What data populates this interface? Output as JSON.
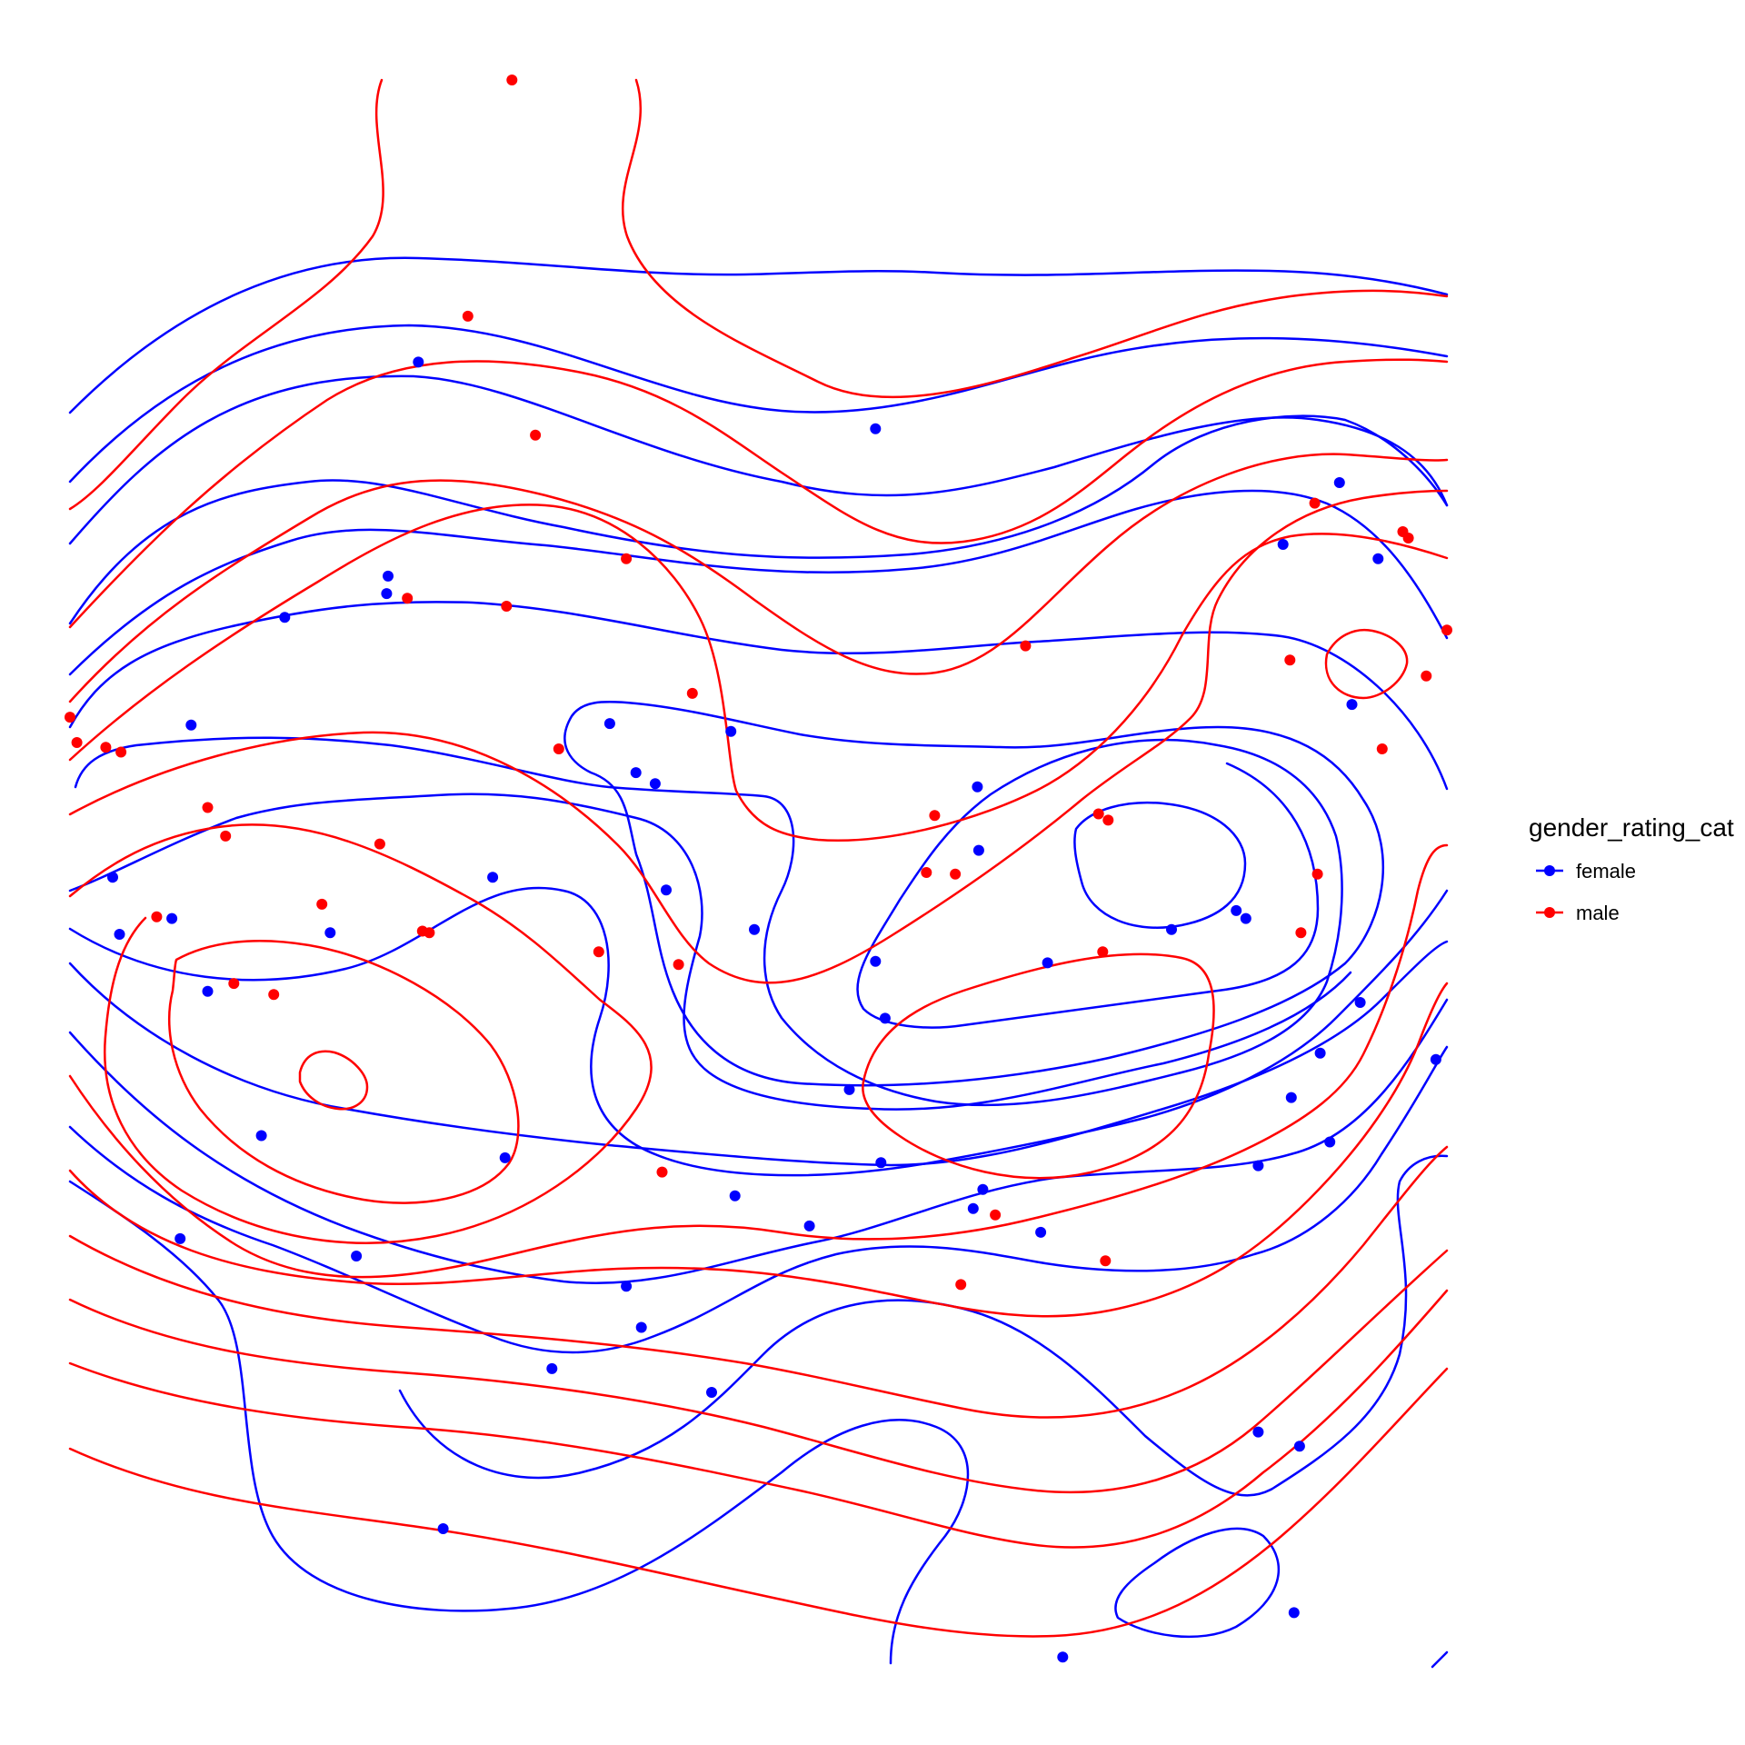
{
  "chart_data": {
    "type": "scatter",
    "title": "",
    "xlabel": "",
    "ylabel": "",
    "grid": false,
    "axes_visible": false,
    "xlim": [
      0,
      100
    ],
    "ylim": [
      0,
      100
    ],
    "legend": {
      "title": "gender_rating_cat",
      "placement": "right"
    },
    "series": [
      {
        "name": "female",
        "color": "#0000ff",
        "points": [
          [
            25.3,
            82.2
          ],
          [
            58.5,
            78.0
          ],
          [
            92.2,
            74.6
          ],
          [
            88.1,
            70.7
          ],
          [
            95.0,
            69.8
          ],
          [
            23.1,
            68.7
          ],
          [
            23.0,
            67.6
          ],
          [
            15.6,
            66.1
          ],
          [
            93.1,
            60.6
          ],
          [
            39.2,
            59.4
          ],
          [
            48.0,
            58.9
          ],
          [
            41.1,
            56.3
          ],
          [
            42.5,
            55.6
          ],
          [
            65.9,
            55.4
          ],
          [
            66.0,
            51.4
          ],
          [
            8.8,
            59.3
          ],
          [
            30.7,
            49.7
          ],
          [
            3.1,
            49.7
          ],
          [
            43.3,
            48.9
          ],
          [
            84.7,
            47.6
          ],
          [
            85.4,
            47.1
          ],
          [
            18.9,
            46.2
          ],
          [
            3.6,
            46.1
          ],
          [
            7.4,
            47.1
          ],
          [
            49.7,
            46.4
          ],
          [
            80.0,
            46.4
          ],
          [
            58.5,
            44.4
          ],
          [
            71.0,
            44.3
          ],
          [
            10.0,
            42.5
          ],
          [
            93.7,
            41.8
          ],
          [
            90.8,
            38.6
          ],
          [
            59.2,
            40.8
          ],
          [
            99.2,
            38.2
          ],
          [
            56.6,
            36.3
          ],
          [
            88.7,
            35.8
          ],
          [
            13.9,
            33.4
          ],
          [
            91.5,
            33.0
          ],
          [
            31.6,
            32.0
          ],
          [
            58.9,
            31.7
          ],
          [
            86.3,
            31.5
          ],
          [
            66.3,
            30.0
          ],
          [
            48.3,
            29.6
          ],
          [
            65.6,
            28.8
          ],
          [
            53.7,
            27.7
          ],
          [
            8.0,
            26.9
          ],
          [
            20.8,
            25.8
          ],
          [
            70.5,
            27.3
          ],
          [
            40.4,
            23.9
          ],
          [
            41.5,
            21.3
          ],
          [
            35.0,
            18.7
          ],
          [
            46.6,
            17.2
          ],
          [
            86.3,
            14.7
          ],
          [
            89.3,
            13.8
          ],
          [
            27.1,
            8.6
          ],
          [
            88.9,
            3.3
          ],
          [
            72.1,
            0.5
          ]
        ]
      },
      {
        "name": "male",
        "color": "#ff0000",
        "points": [
          [
            32.1,
            100.0
          ],
          [
            28.9,
            85.1
          ],
          [
            33.8,
            77.6
          ],
          [
            90.4,
            73.3
          ],
          [
            96.8,
            71.5
          ],
          [
            97.2,
            71.1
          ],
          [
            40.4,
            69.8
          ],
          [
            24.5,
            67.3
          ],
          [
            31.7,
            66.8
          ],
          [
            100.0,
            65.3
          ],
          [
            69.4,
            64.3
          ],
          [
            88.6,
            63.4
          ],
          [
            98.5,
            62.4
          ],
          [
            45.2,
            61.3
          ],
          [
            0.0,
            59.8
          ],
          [
            2.6,
            57.9
          ],
          [
            3.7,
            57.6
          ],
          [
            35.5,
            57.8
          ],
          [
            95.3,
            57.8
          ],
          [
            10.0,
            54.1
          ],
          [
            11.3,
            52.3
          ],
          [
            22.5,
            51.8
          ],
          [
            62.8,
            53.6
          ],
          [
            74.7,
            53.7
          ],
          [
            75.4,
            53.3
          ],
          [
            62.2,
            50.0
          ],
          [
            64.3,
            49.9
          ],
          [
            90.6,
            49.9
          ],
          [
            18.3,
            48.0
          ],
          [
            25.6,
            46.3
          ],
          [
            26.1,
            46.2
          ],
          [
            6.3,
            47.2
          ],
          [
            38.4,
            45.0
          ],
          [
            44.2,
            44.2
          ],
          [
            75.0,
            45.0
          ],
          [
            89.4,
            46.2
          ],
          [
            11.9,
            43.0
          ],
          [
            14.8,
            42.3
          ],
          [
            43.0,
            31.1
          ],
          [
            67.2,
            28.4
          ],
          [
            64.7,
            24.0
          ],
          [
            75.2,
            25.5
          ],
          [
            0.5,
            58.2
          ]
        ]
      }
    ]
  }
}
